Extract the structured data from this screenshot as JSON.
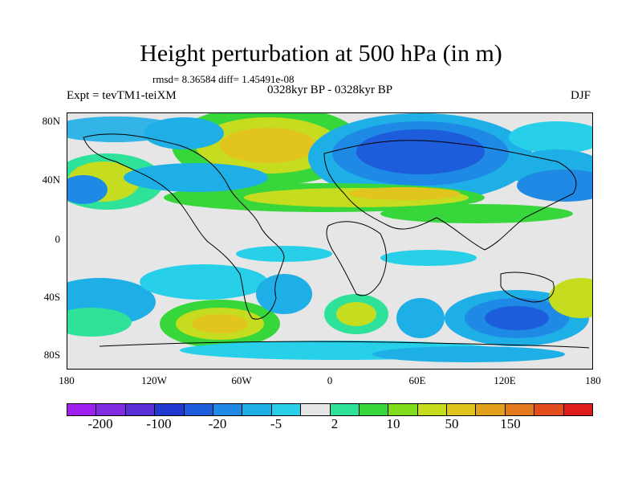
{
  "title": "Height perturbation at 500 hPa (in m)",
  "stats": "rmsd= 8.36584 diff= 1.45491e-08",
  "experiment": "Expt = tevTM1-teiXM",
  "period": "0328kyr BP - 0328kyr BP",
  "season": "DJF",
  "lat_labels": [
    "80N",
    "40N",
    "0",
    "40S",
    "80S"
  ],
  "lon_labels": [
    "180",
    "120W",
    "60W",
    "0",
    "60E",
    "120E",
    "180"
  ],
  "colorbar": {
    "colors": [
      "#a020f0",
      "#7f2be0",
      "#5a2fd8",
      "#2039d0",
      "#1d5cdb",
      "#1e8ae6",
      "#1eafe6",
      "#27d0e8",
      "#e6e6e6",
      "#2ee29a",
      "#37d63a",
      "#7fdc1d",
      "#c6dc1f",
      "#e2c41f",
      "#e2a01d",
      "#e27a1d",
      "#e24d1d",
      "#e01d1d"
    ],
    "labels": [
      "-200",
      "-100",
      "-20",
      "-5",
      "2",
      "10",
      "50",
      "150"
    ]
  }
}
